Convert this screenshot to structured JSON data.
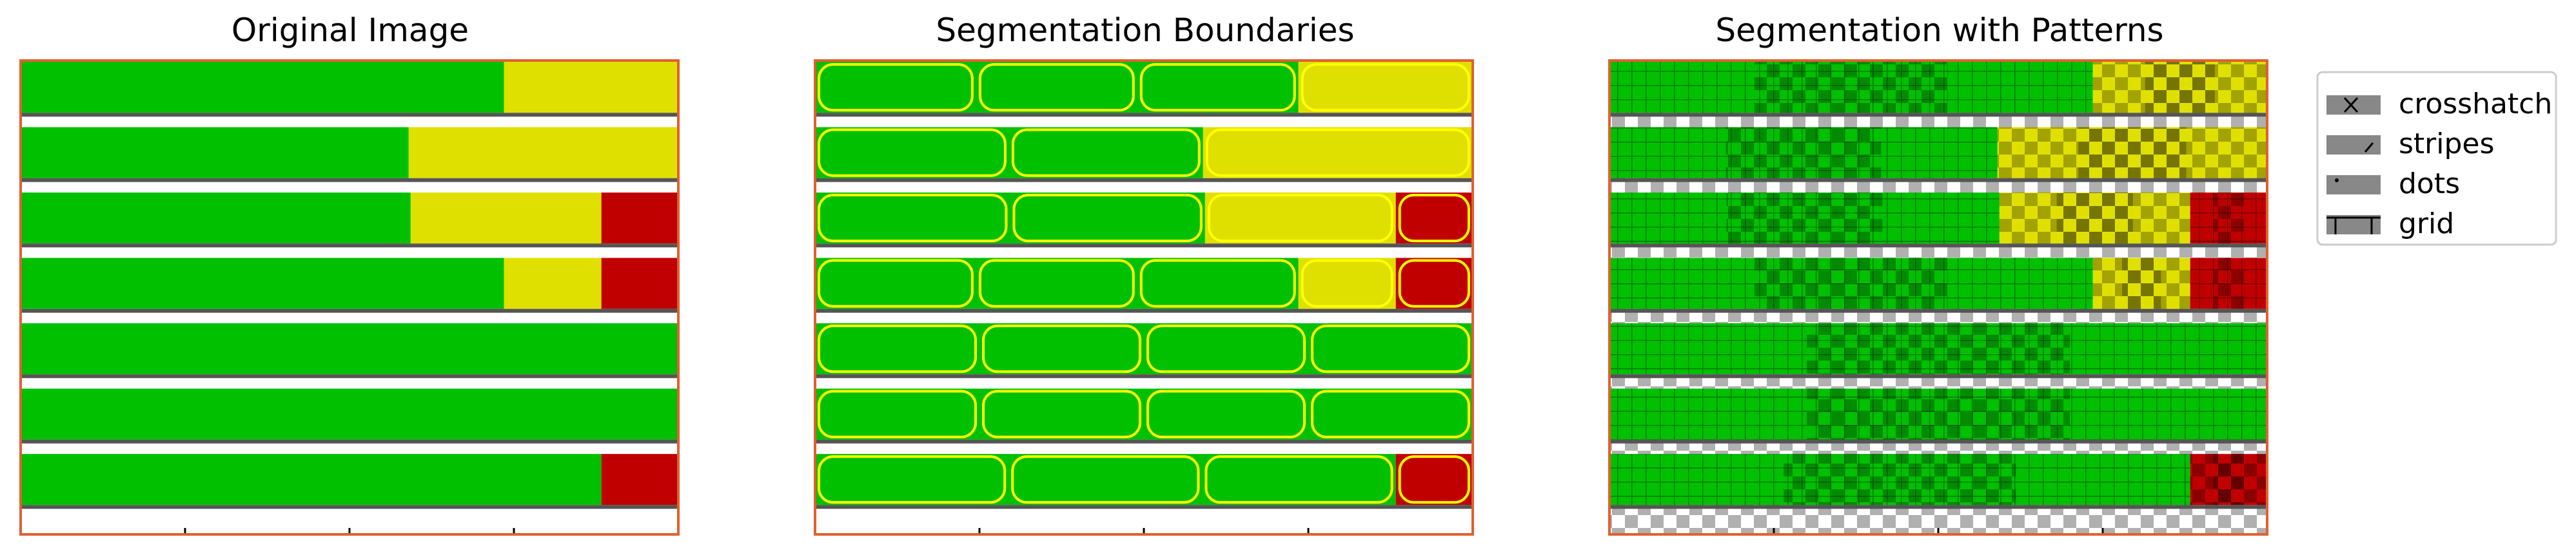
{
  "panels": [
    {
      "title": "Original Image",
      "variant": "original"
    },
    {
      "title": "Segmentation Boundaries",
      "variant": "boundaries"
    },
    {
      "title": "Segmentation with Patterns",
      "variant": "patterns"
    }
  ],
  "chart_data": {
    "type": "heatmap",
    "description_rows": "7 horizontal bars; each row split into colored segments by fraction of width",
    "colors": {
      "green": "#00c000",
      "yellow": "#e0e000",
      "red": "#c00000",
      "frame": "#e06030",
      "boundary": "#ffff00",
      "divider": "#e8e8e8"
    },
    "rows": [
      [
        {
          "color": "green",
          "frac": 0.735
        },
        {
          "color": "yellow",
          "frac": 0.265
        }
      ],
      [
        {
          "color": "green",
          "frac": 0.59
        },
        {
          "color": "yellow",
          "frac": 0.41
        }
      ],
      [
        {
          "color": "green",
          "frac": 0.593
        },
        {
          "color": "yellow",
          "frac": 0.29
        },
        {
          "color": "red",
          "frac": 0.117
        }
      ],
      [
        {
          "color": "green",
          "frac": 0.735
        },
        {
          "color": "yellow",
          "frac": 0.148
        },
        {
          "color": "red",
          "frac": 0.117
        }
      ],
      [
        {
          "color": "green",
          "frac": 1.0
        }
      ],
      [
        {
          "color": "green",
          "frac": 1.0
        }
      ],
      [
        {
          "color": "green",
          "frac": 0.883
        },
        {
          "color": "red",
          "frac": 0.117
        }
      ]
    ],
    "x_ticks": 4,
    "legend": {
      "placement": "right",
      "entries": [
        {
          "label": "crosshatch",
          "pattern": "crosshatch"
        },
        {
          "label": "stripes",
          "pattern": "stripes"
        },
        {
          "label": "dots",
          "pattern": "dots"
        },
        {
          "label": "grid",
          "pattern": "grid"
        }
      ]
    }
  }
}
